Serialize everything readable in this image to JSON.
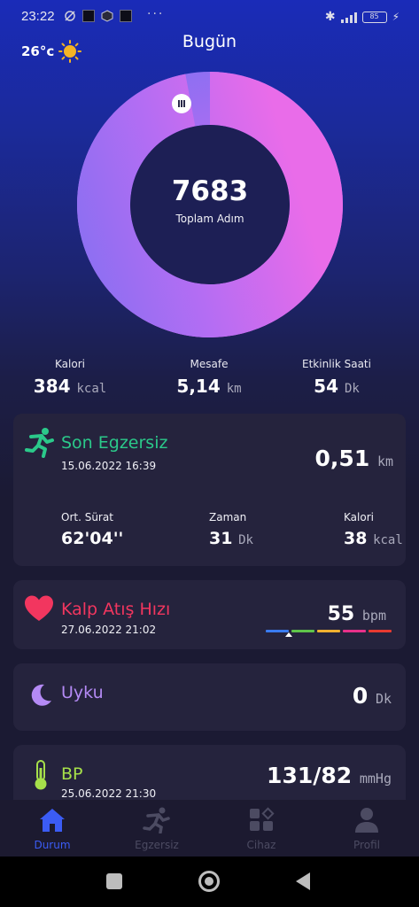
{
  "status_bar": {
    "time": "23:22",
    "more": "···",
    "battery": "85"
  },
  "header": {
    "temperature": "26°c",
    "title": "Bugün"
  },
  "steps": {
    "value": "7683",
    "label": "Toplam Adım",
    "progress": 0.97
  },
  "stats": [
    {
      "label": "Kalori",
      "value": "384",
      "unit": "kcal"
    },
    {
      "label": "Mesafe",
      "value": "5,14",
      "unit": "km"
    },
    {
      "label": "Etkinlik Saati",
      "value": "54",
      "unit": "Dk"
    }
  ],
  "exercise": {
    "title": "Son Egzersiz",
    "date": "15.06.2022 16:39",
    "distance": "0,51",
    "distance_unit": "km",
    "metrics": [
      {
        "label": "Ort. Sürat",
        "value": "62'04''",
        "unit": ""
      },
      {
        "label": "Zaman",
        "value": "31",
        "unit": "Dk"
      },
      {
        "label": "Kalori",
        "value": "38",
        "unit": "kcal"
      }
    ]
  },
  "heart_rate": {
    "title": "Kalp Atış Hızı",
    "date": "27.06.2022 21:02",
    "value": "55",
    "unit": "bpm",
    "zone_colors": [
      "#3a7bf0",
      "#5fc44a",
      "#f0b030",
      "#e8308a",
      "#e83a30"
    ]
  },
  "sleep": {
    "title": "Uyku",
    "value": "0",
    "unit": "Dk"
  },
  "bp": {
    "title": "BP",
    "date": "25.06.2022 21:30",
    "value": "131/82",
    "unit": "mmHg"
  },
  "nav": [
    {
      "label": "Durum",
      "icon": "home-icon",
      "active": true
    },
    {
      "label": "Egzersiz",
      "icon": "running-icon",
      "active": false
    },
    {
      "label": "Cihaz",
      "icon": "device-grid-icon",
      "active": false
    },
    {
      "label": "Profil",
      "icon": "person-icon",
      "active": false
    }
  ],
  "colors": {
    "exercise": "#2bc98a",
    "heart": "#f2365f",
    "sleep": "#b48af5",
    "bp": "#a6e04a",
    "nav_active": "#3b5cf5"
  }
}
